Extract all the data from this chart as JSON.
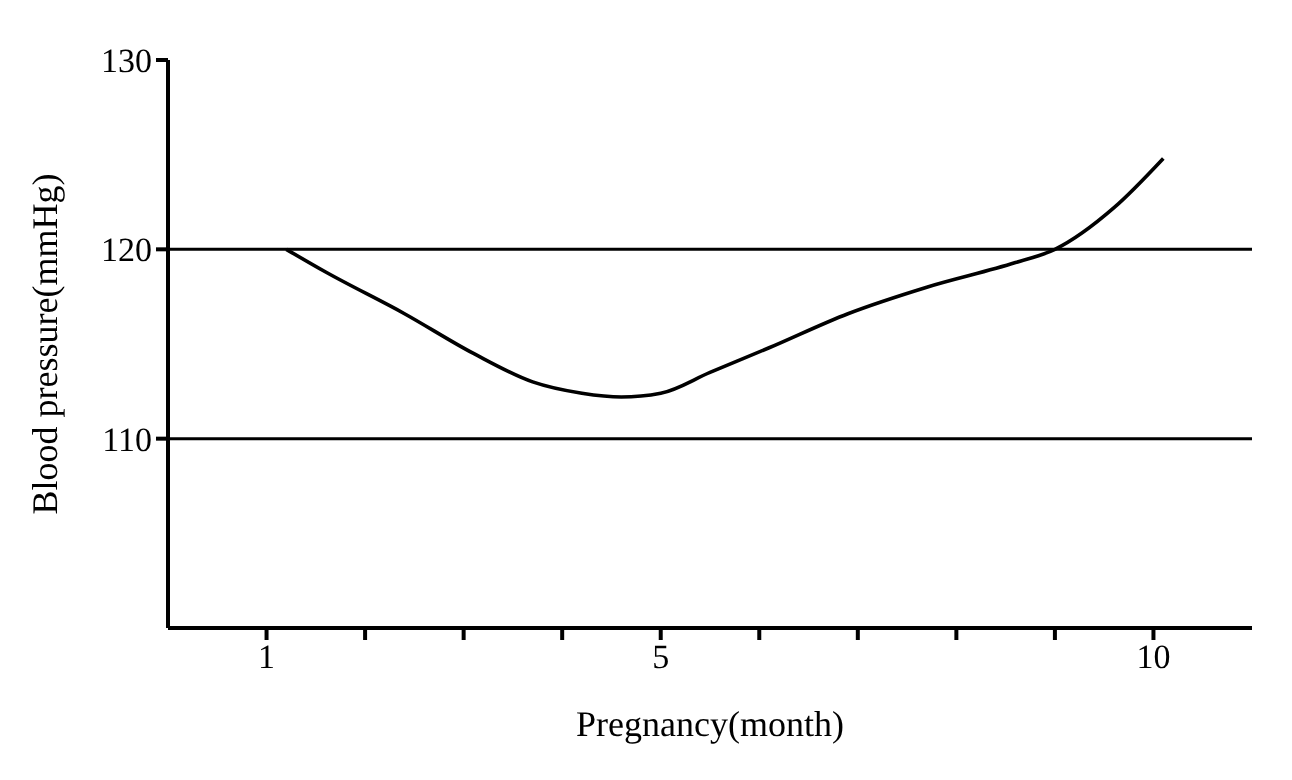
{
  "chart_data": {
    "type": "line",
    "xlabel": "Pregnancy(month)",
    "ylabel": "Blood pressure(mmHg)",
    "x": [
      1.2,
      1.6,
      2.4,
      3.1,
      3.7,
      4.2,
      4.6,
      5.0,
      5.5,
      6.1,
      6.9,
      7.7,
      8.6,
      9.0,
      9.6,
      10.1
    ],
    "series": [
      {
        "color": "#000000",
        "values": [
          120,
          118.8,
          116.6,
          114.5,
          113,
          112.4,
          112.2,
          112.4,
          113.5,
          114.8,
          116.6,
          118,
          119.3,
          120,
          122.2,
          124.8
        ]
      }
    ],
    "xlim": [
      0,
      11
    ],
    "xticks": [
      1,
      {
        "value": 2,
        "label": null
      },
      {
        "value": 3,
        "label": null
      },
      {
        "value": 4,
        "label": null
      },
      5,
      {
        "value": 6,
        "label": null
      },
      {
        "value": 7,
        "label": null
      },
      {
        "value": 8,
        "label": null
      },
      {
        "value": 9,
        "label": null
      },
      10
    ],
    "ylim": [
      100,
      130
    ],
    "yticks": [
      110,
      120,
      130
    ],
    "ref_lines": [
      {
        "axis": "y",
        "value": 120,
        "color": "#000000"
      },
      {
        "axis": "y",
        "value": 110,
        "color": "#000000"
      }
    ],
    "grid": false,
    "legend": false,
    "marker": "none",
    "line_style": "solid"
  }
}
